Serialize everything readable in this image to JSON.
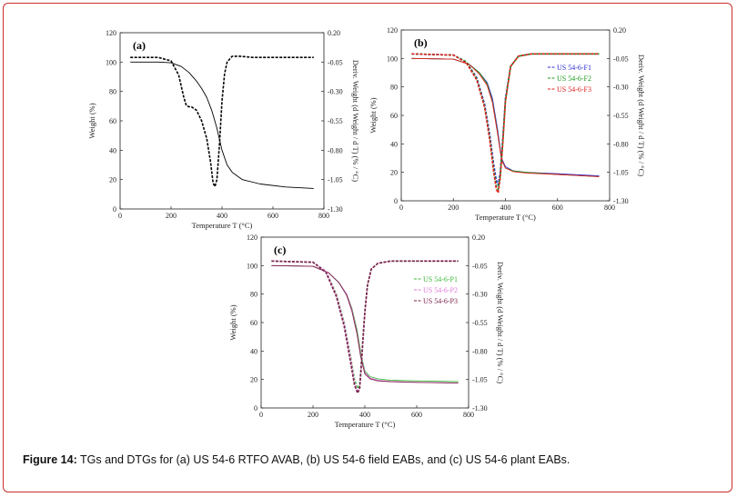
{
  "caption": {
    "label": "Figure 14:",
    "text": " TGs and DTGs for (a) US 54-6 RTFO AVAB, (b) US 54-6 field EABs, and (c) US 54-6 plant EABs."
  },
  "colors": {
    "frame": "#c9302c",
    "axis": "#222222"
  },
  "chart_data": [
    {
      "id": "a",
      "type": "line",
      "panel_label": "(a)",
      "xlabel": "Temperature T (°C)",
      "ylabel": "Weight (%)",
      "y2label": "Deriv. Weight (d Weight / d T) (% / °C)",
      "xlim": [
        0,
        800
      ],
      "ylim": [
        0,
        120
      ],
      "y2lim": [
        -1.3,
        0.2
      ],
      "x_ticks": [
        "0",
        "200",
        "400",
        "600",
        "800"
      ],
      "y_ticks": [
        "0",
        "20",
        "40",
        "60",
        "80",
        "100",
        "120"
      ],
      "y2_ticks": [
        "0.20",
        "-0.05",
        "-0.30",
        "-0.55",
        "-0.80",
        "-1.05",
        "-1.30"
      ],
      "grid": false,
      "legend": [],
      "series": [
        {
          "kind": "weight",
          "color": "#000000",
          "dashed": false,
          "x": [
            40,
            150,
            200,
            240,
            270,
            300,
            320,
            340,
            360,
            380,
            400,
            420,
            440,
            480,
            550,
            650,
            760
          ],
          "y": [
            100,
            100,
            99.5,
            97,
            93,
            87,
            82,
            76,
            67,
            55,
            40,
            30,
            25,
            20,
            17,
            15,
            14
          ]
        },
        {
          "kind": "deriv",
          "color": "#000000",
          "dashed": true,
          "x": [
            40,
            150,
            200,
            230,
            250,
            260,
            270,
            280,
            300,
            320,
            340,
            355,
            365,
            372,
            380,
            390,
            400,
            410,
            420,
            440,
            470,
            520,
            600,
            760
          ],
          "y": [
            -0.01,
            -0.01,
            -0.04,
            -0.16,
            -0.35,
            -0.42,
            -0.43,
            -0.43,
            -0.46,
            -0.55,
            -0.7,
            -0.9,
            -1.08,
            -1.11,
            -1.05,
            -0.75,
            -0.38,
            -0.15,
            -0.05,
            0.0,
            0.0,
            -0.01,
            -0.01,
            -0.01
          ]
        }
      ]
    },
    {
      "id": "b",
      "type": "line",
      "panel_label": "(b)",
      "xlabel": "Temperature T (°C)",
      "ylabel": "Weight (%)",
      "y2label": "Deriv. Weight (d Weight / d T) (% / °C)",
      "xlim": [
        0,
        800
      ],
      "ylim": [
        0,
        120
      ],
      "y2lim": [
        -1.3,
        0.2
      ],
      "x_ticks": [
        "0",
        "200",
        "400",
        "600",
        "800"
      ],
      "y_ticks": [
        "0",
        "20",
        "40",
        "60",
        "80",
        "100",
        "120"
      ],
      "y2_ticks": [
        "0.20",
        "-0.05",
        "-0.30",
        "-0.55",
        "-0.80",
        "-1.05",
        "-1.30"
      ],
      "grid": false,
      "legend": [
        {
          "name": "US 54-6-F1",
          "color": "#2b2bd8"
        },
        {
          "name": "US 54-6-F2",
          "color": "#1a9a1a"
        },
        {
          "name": "US 54-6-F3",
          "color": "#e02020"
        }
      ],
      "series": [
        {
          "kind": "weight",
          "color": "#2b2bd8",
          "dashed": false,
          "x": [
            40,
            200,
            260,
            300,
            330,
            350,
            370,
            385,
            400,
            430,
            480,
            600,
            760
          ],
          "y": [
            100,
            99.5,
            96,
            90,
            83,
            72,
            50,
            30,
            24,
            21,
            20,
            19,
            17.5
          ]
        },
        {
          "kind": "weight",
          "color": "#1a9a1a",
          "dashed": false,
          "x": [
            40,
            200,
            260,
            300,
            330,
            350,
            370,
            385,
            400,
            430,
            480,
            600,
            760
          ],
          "y": [
            100,
            99.5,
            96,
            90,
            82,
            70,
            48,
            29,
            23,
            21,
            20,
            18.5,
            17
          ]
        },
        {
          "kind": "weight",
          "color": "#e02020",
          "dashed": false,
          "x": [
            40,
            200,
            260,
            300,
            330,
            350,
            370,
            385,
            400,
            430,
            480,
            600,
            760
          ],
          "y": [
            100,
            99.5,
            96,
            89,
            81,
            69,
            47,
            29,
            23,
            20.5,
            19.5,
            18.5,
            17
          ]
        },
        {
          "kind": "deriv",
          "color": "#2b2bd8",
          "dashed": true,
          "x": [
            40,
            200,
            250,
            290,
            320,
            340,
            355,
            365,
            372,
            380,
            390,
            400,
            420,
            450,
            500,
            760
          ],
          "y": [
            -0.01,
            -0.02,
            -0.08,
            -0.22,
            -0.45,
            -0.72,
            -0.98,
            -1.12,
            -1.16,
            -1.05,
            -0.75,
            -0.4,
            -0.12,
            -0.03,
            -0.01,
            -0.01
          ]
        },
        {
          "kind": "deriv",
          "color": "#1a9a1a",
          "dashed": true,
          "x": [
            40,
            200,
            250,
            290,
            320,
            340,
            355,
            365,
            372,
            380,
            390,
            400,
            420,
            450,
            500,
            760
          ],
          "y": [
            -0.01,
            -0.02,
            -0.08,
            -0.23,
            -0.47,
            -0.75,
            -1.02,
            -1.17,
            -1.2,
            -1.08,
            -0.78,
            -0.42,
            -0.12,
            -0.03,
            -0.01,
            -0.01
          ]
        },
        {
          "kind": "deriv",
          "color": "#e02020",
          "dashed": true,
          "x": [
            40,
            200,
            250,
            290,
            320,
            340,
            355,
            365,
            372,
            380,
            390,
            400,
            420,
            450,
            500,
            760
          ],
          "y": [
            -0.01,
            -0.02,
            -0.09,
            -0.24,
            -0.48,
            -0.77,
            -1.05,
            -1.2,
            -1.23,
            -1.1,
            -0.8,
            -0.43,
            -0.12,
            -0.03,
            -0.01,
            -0.01
          ]
        }
      ]
    },
    {
      "id": "c",
      "type": "line",
      "panel_label": "(c)",
      "xlabel": "Temperature T (°C)",
      "ylabel": "Weight (%)",
      "y2label": "Deriv. Weight (d Weight / d T) (% / °C)",
      "xlim": [
        0,
        800
      ],
      "ylim": [
        0,
        120
      ],
      "y2lim": [
        -1.3,
        0.2
      ],
      "x_ticks": [
        "0",
        "200",
        "400",
        "600",
        "800"
      ],
      "y_ticks": [
        "0",
        "20",
        "40",
        "60",
        "80",
        "100",
        "120"
      ],
      "y2_ticks": [
        "0.20",
        "-0.05",
        "-0.30",
        "-0.55",
        "-0.80",
        "-1.05",
        "-1.30"
      ],
      "grid": false,
      "legend": [
        {
          "name": "US 54-6-P1",
          "color": "#3cb83c"
        },
        {
          "name": "US 54-6-P2",
          "color": "#e07ad8"
        },
        {
          "name": "US 54-6-P3",
          "color": "#7a1f4a"
        }
      ],
      "series": [
        {
          "kind": "weight",
          "color": "#3cb83c",
          "dashed": false,
          "x": [
            40,
            200,
            260,
            300,
            330,
            350,
            370,
            385,
            400,
            420,
            450,
            500,
            600,
            760
          ],
          "y": [
            100,
            99.5,
            95,
            88,
            80,
            70,
            55,
            38,
            26,
            22,
            20.5,
            19.5,
            19,
            18.5
          ]
        },
        {
          "kind": "weight",
          "color": "#e07ad8",
          "dashed": false,
          "x": [
            40,
            200,
            260,
            300,
            330,
            350,
            370,
            385,
            400,
            420,
            450,
            500,
            600,
            760
          ],
          "y": [
            100,
            99.5,
            95,
            88,
            80,
            69,
            53,
            36,
            25,
            21,
            19.5,
            18.5,
            18,
            17.5
          ]
        },
        {
          "kind": "weight",
          "color": "#7a1f4a",
          "dashed": false,
          "x": [
            40,
            200,
            260,
            300,
            330,
            350,
            370,
            385,
            400,
            420,
            450,
            500,
            600,
            760
          ],
          "y": [
            100,
            99.5,
            95,
            88,
            79,
            68,
            52,
            35,
            24,
            20.5,
            19,
            18.5,
            18,
            17.5
          ]
        },
        {
          "kind": "deriv",
          "color": "#3cb83c",
          "dashed": true,
          "x": [
            40,
            200,
            250,
            290,
            320,
            345,
            360,
            372,
            380,
            385,
            392,
            400,
            410,
            425,
            450,
            500,
            760
          ],
          "y": [
            -0.01,
            -0.02,
            -0.1,
            -0.3,
            -0.55,
            -0.85,
            -1.05,
            -1.13,
            -1.1,
            -0.95,
            -0.7,
            -0.45,
            -0.22,
            -0.08,
            -0.03,
            -0.01,
            -0.01
          ]
        },
        {
          "kind": "deriv",
          "color": "#e07ad8",
          "dashed": true,
          "x": [
            40,
            200,
            250,
            290,
            320,
            345,
            360,
            372,
            380,
            385,
            392,
            400,
            410,
            425,
            450,
            500,
            760
          ],
          "y": [
            -0.01,
            -0.02,
            -0.1,
            -0.31,
            -0.56,
            -0.87,
            -1.08,
            -1.15,
            -1.12,
            -0.97,
            -0.72,
            -0.46,
            -0.22,
            -0.08,
            -0.03,
            -0.01,
            -0.01
          ]
        },
        {
          "kind": "deriv",
          "color": "#7a1f4a",
          "dashed": true,
          "x": [
            40,
            200,
            250,
            290,
            320,
            345,
            360,
            372,
            380,
            385,
            392,
            400,
            410,
            425,
            450,
            500,
            760
          ],
          "y": [
            -0.01,
            -0.02,
            -0.11,
            -0.32,
            -0.58,
            -0.9,
            -1.1,
            -1.17,
            -1.13,
            -0.98,
            -0.73,
            -0.46,
            -0.22,
            -0.08,
            -0.03,
            -0.01,
            -0.01
          ]
        }
      ]
    }
  ]
}
